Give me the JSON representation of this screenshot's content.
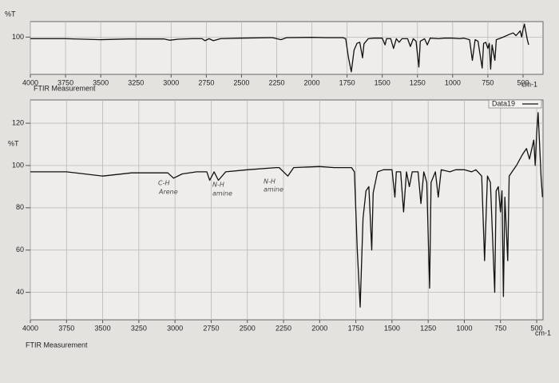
{
  "chart_data": [
    {
      "type": "line",
      "y_label": "%T",
      "x_label": "FTIR Measurement",
      "x_unit": "cm-1",
      "xlim": [
        4000,
        358
      ],
      "xticks": [
        4000,
        3750,
        3500,
        3250,
        3000,
        2750,
        2500,
        2250,
        2000,
        1750,
        1500,
        1250,
        1000,
        750,
        500
      ],
      "ylim": [
        28,
        130
      ],
      "yticks": [
        100
      ],
      "grid": true,
      "color": "#111111",
      "x": [
        4000,
        3750,
        3500,
        3300,
        3050,
        3010,
        2950,
        2850,
        2780,
        2760,
        2730,
        2700,
        2650,
        2500,
        2300,
        2280,
        2220,
        2180,
        2000,
        1900,
        1780,
        1760,
        1740,
        1720,
        1700,
        1680,
        1660,
        1640,
        1630,
        1600,
        1560,
        1500,
        1480,
        1470,
        1440,
        1420,
        1400,
        1380,
        1360,
        1320,
        1300,
        1280,
        1260,
        1240,
        1230,
        1200,
        1180,
        1160,
        1100,
        1060,
        1000,
        950,
        920,
        880,
        860,
        840,
        820,
        790,
        780,
        765,
        750,
        740,
        730,
        720,
        700,
        690,
        670,
        640,
        600,
        570,
        550,
        520,
        510,
        500,
        490,
        480,
        470,
        460
      ],
      "values": [
        97,
        97,
        95,
        96.5,
        96.5,
        94,
        96,
        97,
        97,
        93,
        97,
        93,
        97,
        98,
        99,
        99,
        95,
        99,
        99.5,
        99,
        99,
        97,
        60,
        33,
        75,
        88,
        90,
        60,
        87,
        97,
        98,
        98,
        85,
        97,
        97,
        78,
        97,
        90,
        97,
        97,
        82,
        97,
        92,
        42,
        92,
        97,
        85,
        98,
        97,
        98,
        98,
        97,
        98,
        95,
        55,
        95,
        92,
        40,
        88,
        90,
        78,
        88,
        38,
        85,
        55,
        95,
        97,
        100,
        105,
        108,
        103,
        112,
        100,
        115,
        125,
        110,
        95,
        85
      ]
    },
    {
      "type": "line",
      "y_label": "%T",
      "x_label": "FTIR Measurement",
      "x_unit": "cm-1",
      "xlim": [
        4000,
        456
      ],
      "xticks": [
        4000,
        3750,
        3500,
        3250,
        3000,
        2750,
        2500,
        2250,
        2000,
        1750,
        1500,
        1250,
        1000,
        750,
        500
      ],
      "ylim": [
        27,
        131
      ],
      "yticks": [
        40,
        60,
        80,
        100,
        120
      ],
      "grid": true,
      "legend": "top-right",
      "annotations": [
        "C-H",
        "Arene",
        "N-H",
        "amine",
        "N-H",
        "amine"
      ],
      "x": [
        4000,
        3750,
        3500,
        3300,
        3050,
        3010,
        2950,
        2850,
        2780,
        2760,
        2730,
        2700,
        2650,
        2500,
        2300,
        2280,
        2220,
        2180,
        2000,
        1900,
        1780,
        1760,
        1740,
        1720,
        1700,
        1680,
        1660,
        1640,
        1630,
        1600,
        1560,
        1500,
        1480,
        1470,
        1440,
        1420,
        1400,
        1380,
        1360,
        1320,
        1300,
        1280,
        1260,
        1240,
        1230,
        1200,
        1180,
        1160,
        1100,
        1060,
        1000,
        950,
        920,
        880,
        860,
        840,
        820,
        790,
        780,
        765,
        750,
        740,
        730,
        720,
        700,
        690,
        670,
        640,
        600,
        570,
        550,
        520,
        510,
        500,
        490,
        480,
        470,
        460
      ],
      "series": [
        {
          "name": "Data19",
          "color": "#111111",
          "values": [
            97,
            97,
            95,
            96.5,
            96.5,
            94,
            96,
            97,
            97,
            93,
            97,
            93,
            97,
            98,
            99,
            99,
            95,
            99,
            99.5,
            99,
            99,
            97,
            60,
            33,
            75,
            88,
            90,
            60,
            87,
            97,
            98,
            98,
            85,
            97,
            97,
            78,
            97,
            90,
            97,
            97,
            82,
            97,
            92,
            42,
            92,
            97,
            85,
            98,
            97,
            98,
            98,
            97,
            98,
            95,
            55,
            95,
            92,
            40,
            88,
            90,
            78,
            88,
            38,
            85,
            55,
            95,
            97,
            100,
            105,
            108,
            103,
            112,
            100,
            115,
            125,
            110,
            95,
            85
          ]
        }
      ]
    }
  ]
}
